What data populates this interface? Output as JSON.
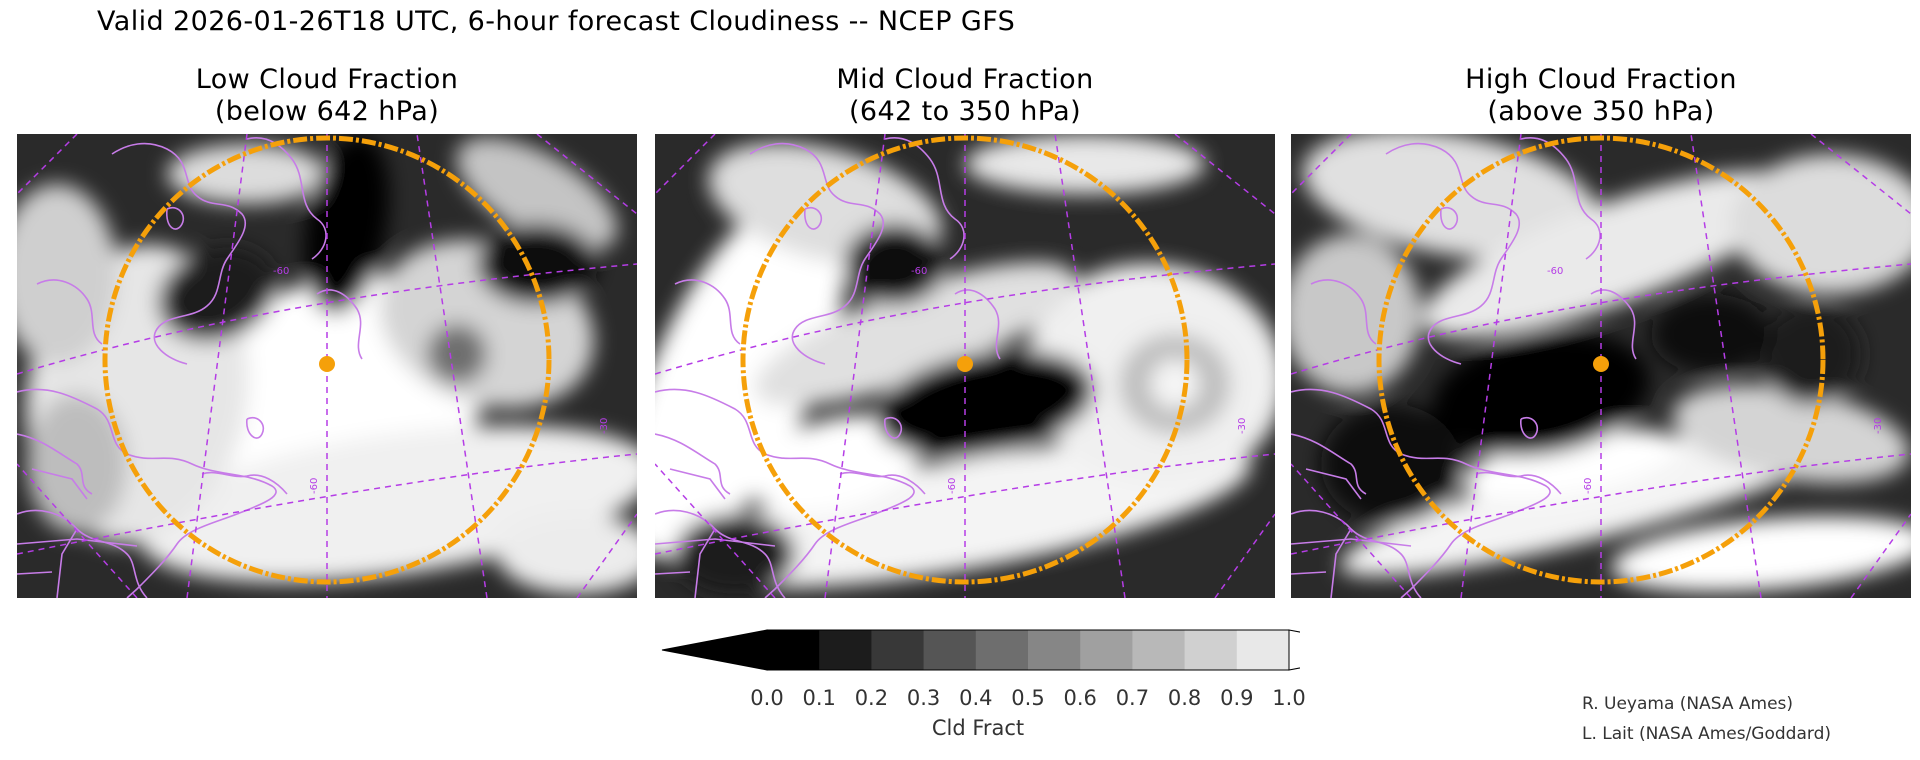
{
  "header": {
    "title": "Valid 2026-01-26T18 UTC, 6-hour forecast Cloudiness -- NCEP GFS"
  },
  "panels": [
    {
      "title_line1": "Low Cloud Fraction",
      "title_line2": "(below 642 hPa)",
      "layer": "low",
      "lat_labels": [
        "-60",
        "-60",
        "-30"
      ]
    },
    {
      "title_line1": "Mid Cloud Fraction",
      "title_line2": "(642 to 350 hPa)",
      "layer": "mid",
      "lat_labels": [
        "-60",
        "-60",
        "-30"
      ]
    },
    {
      "title_line1": "High Cloud Fraction",
      "title_line2": "(above 350 hPa)",
      "layer": "high",
      "lat_labels": [
        "-60",
        "-60",
        "-30"
      ]
    }
  ],
  "overlay": {
    "range_ring_color": "#f5a00a",
    "center_marker_color": "#f5a00a",
    "coastline_color": "#c77ce8",
    "graticule_color": "#b53de6"
  },
  "colorbar": {
    "label": "Cld Fract",
    "ticks": [
      "0.0",
      "0.1",
      "0.2",
      "0.3",
      "0.4",
      "0.5",
      "0.6",
      "0.7",
      "0.8",
      "0.9",
      "1.0"
    ],
    "colors": [
      "#000000",
      "#1c1c1c",
      "#383838",
      "#555555",
      "#6e6e6e",
      "#868686",
      "#a0a0a0",
      "#b8b8b8",
      "#d0d0d0",
      "#e8e8e8"
    ],
    "under_color": "#000000",
    "over_color": "#ffffff"
  },
  "credits": {
    "line1": "R. Ueyama (NASA Ames)",
    "line2": "L. Lait (NASA Ames/Goddard)"
  }
}
